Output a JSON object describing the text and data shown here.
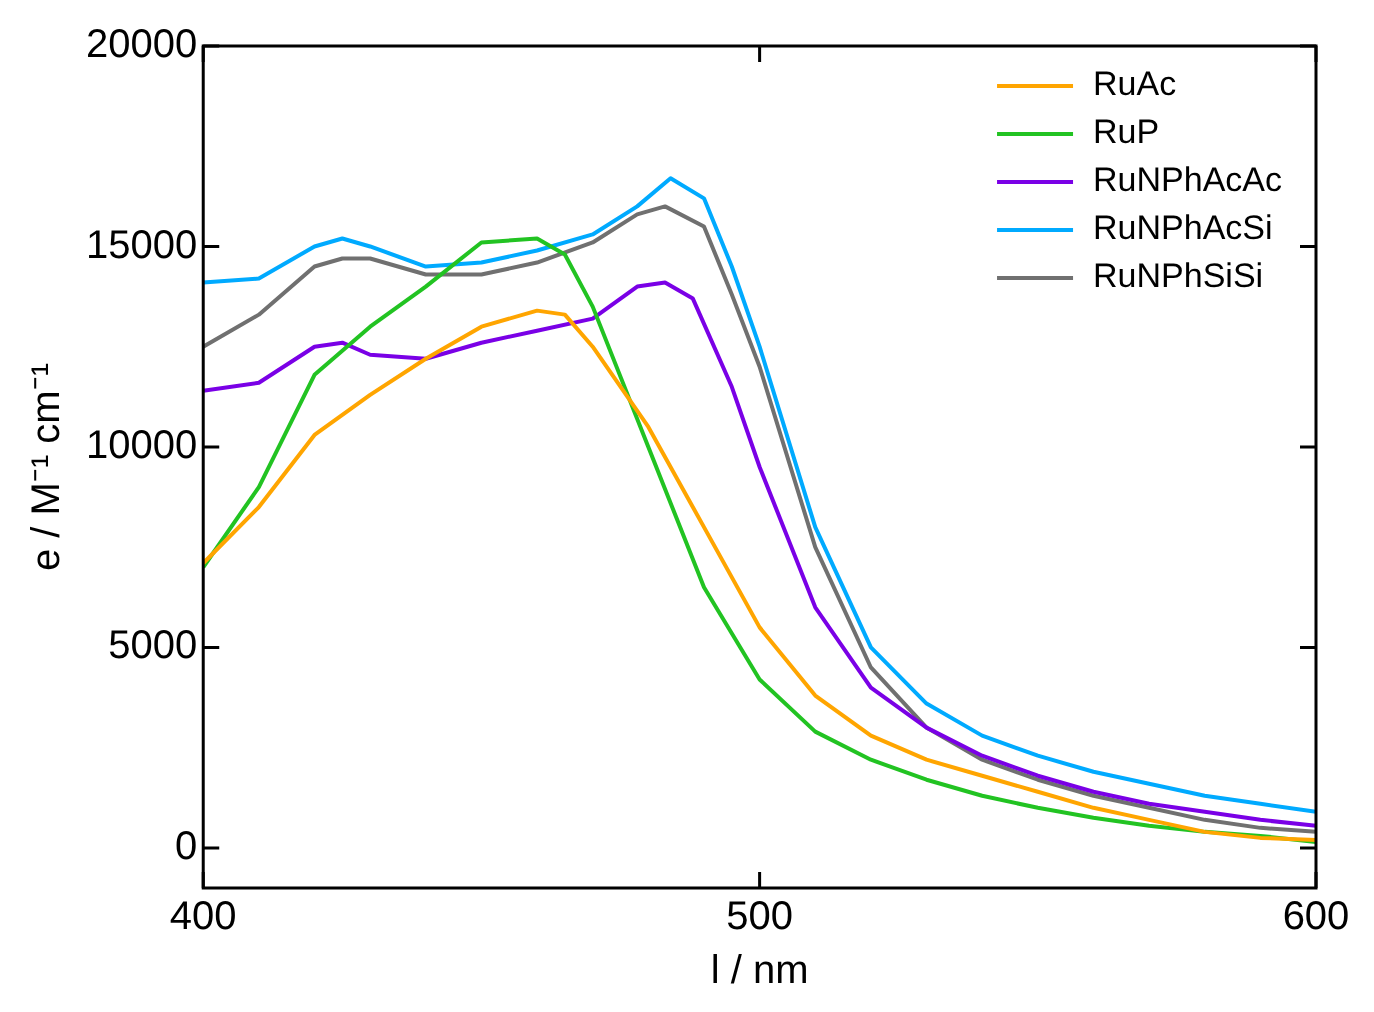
{
  "chart_data": {
    "type": "line",
    "xlabel": "l / nm",
    "ylabel": "e / M⁻¹ cm⁻¹",
    "xlim": [
      400,
      600
    ],
    "xticks": [
      400,
      500,
      600
    ],
    "ylim": [
      -1000,
      20000
    ],
    "yticks": [
      0,
      5000,
      10000,
      15000,
      20000
    ],
    "legend": "top right",
    "series": [
      {
        "name": "RuAc",
        "color": "#ffa500",
        "x": [
          400,
          410,
          420,
          430,
          440,
          450,
          460,
          465,
          470,
          480,
          490,
          500,
          510,
          520,
          530,
          540,
          550,
          560,
          570,
          580,
          590,
          600
        ],
        "values": [
          7100,
          8500,
          10300,
          11300,
          12200,
          13000,
          13400,
          13300,
          12500,
          10500,
          8000,
          5500,
          3800,
          2800,
          2200,
          1800,
          1400,
          1000,
          700,
          400,
          250,
          200
        ]
      },
      {
        "name": "RuP",
        "color": "#22c322",
        "x": [
          400,
          410,
          420,
          430,
          440,
          450,
          460,
          465,
          470,
          480,
          490,
          500,
          510,
          520,
          530,
          540,
          550,
          560,
          570,
          580,
          590,
          600
        ],
        "values": [
          7000,
          9000,
          11800,
          13000,
          14000,
          15100,
          15200,
          14800,
          13500,
          10000,
          6500,
          4200,
          2900,
          2200,
          1700,
          1300,
          1000,
          750,
          550,
          400,
          300,
          150
        ]
      },
      {
        "name": "RuNPhAcAc",
        "color": "#7a00e6",
        "x": [
          400,
          410,
          420,
          425,
          430,
          440,
          450,
          460,
          470,
          478,
          483,
          488,
          495,
          500,
          510,
          520,
          530,
          540,
          550,
          560,
          570,
          580,
          590,
          600
        ],
        "values": [
          11400,
          11600,
          12500,
          12600,
          12300,
          12200,
          12600,
          12900,
          13200,
          14000,
          14100,
          13700,
          11500,
          9500,
          6000,
          4000,
          3000,
          2300,
          1800,
          1400,
          1100,
          900,
          700,
          550
        ]
      },
      {
        "name": "RuNPhAcSi",
        "color": "#00aaff",
        "x": [
          400,
          410,
          420,
          425,
          430,
          440,
          450,
          460,
          470,
          478,
          484,
          490,
          495,
          500,
          510,
          520,
          530,
          540,
          550,
          560,
          570,
          580,
          590,
          600
        ],
        "values": [
          14100,
          14200,
          15000,
          15200,
          15000,
          14500,
          14600,
          14900,
          15300,
          16000,
          16700,
          16200,
          14500,
          12500,
          8000,
          5000,
          3600,
          2800,
          2300,
          1900,
          1600,
          1300,
          1100,
          900
        ]
      },
      {
        "name": "RuNPhSiSi",
        "color": "#707070",
        "x": [
          400,
          410,
          420,
          425,
          430,
          440,
          450,
          460,
          470,
          478,
          483,
          490,
          495,
          500,
          510,
          520,
          530,
          540,
          550,
          560,
          570,
          580,
          590,
          600
        ],
        "values": [
          12500,
          13300,
          14500,
          14700,
          14700,
          14300,
          14300,
          14600,
          15100,
          15800,
          16000,
          15500,
          13800,
          12000,
          7500,
          4500,
          3000,
          2200,
          1700,
          1300,
          1000,
          700,
          500,
          400
        ]
      }
    ]
  }
}
